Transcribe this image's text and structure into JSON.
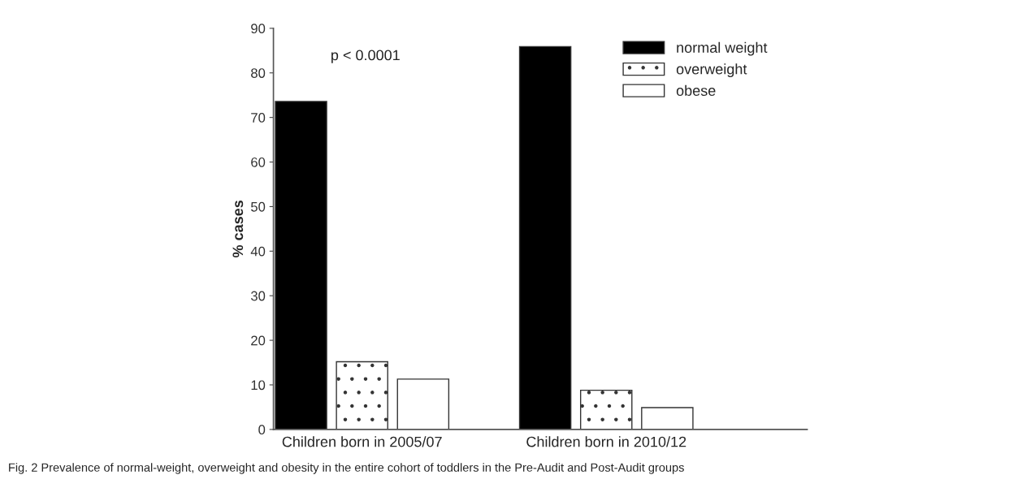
{
  "chart_data": {
    "type": "bar",
    "ylabel": "% cases",
    "categories": [
      "Children born in 2005/07",
      "Children born in 2010/12"
    ],
    "series": [
      {
        "name": "normal weight",
        "color": "#000000",
        "values": [
          73.6,
          85.9
        ]
      },
      {
        "name": "overweight",
        "color": "#333333",
        "values": [
          15.2,
          8.8
        ]
      },
      {
        "name": "obese",
        "color": "#ffffff",
        "values": [
          11.3,
          4.9
        ]
      }
    ],
    "ylim": [
      0,
      90
    ],
    "yticks": [
      0,
      10,
      20,
      30,
      40,
      50,
      60,
      70,
      80,
      90
    ],
    "grid": false,
    "legend": "top right",
    "annotations": [
      "p < 0.0001",
      "Fig. 2 Prevalence of normal-weight, overweight and obesity in the entire cohort of toddlers in the Pre-Audit and Post-Audit groups"
    ]
  }
}
